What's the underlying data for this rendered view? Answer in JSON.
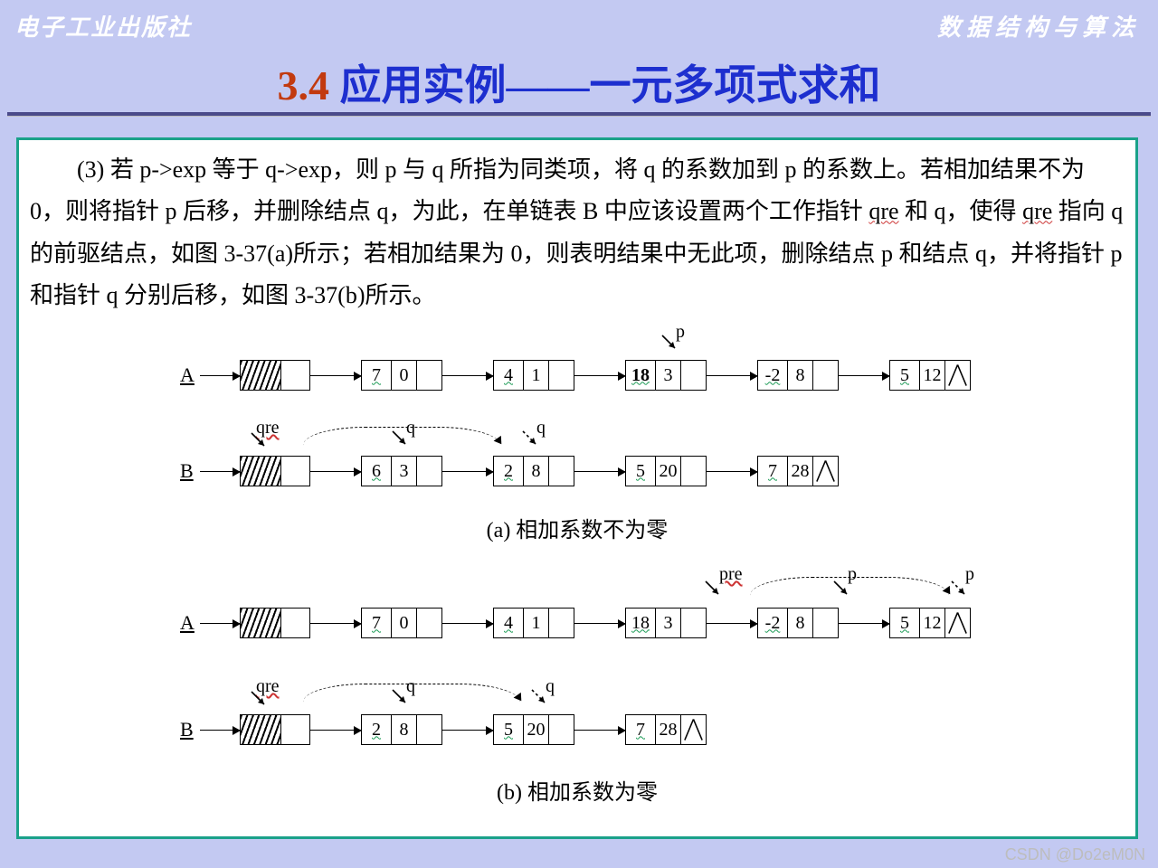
{
  "header": {
    "left": "电子工业出版社",
    "right": "数据结构与算法"
  },
  "title": {
    "number": "3.4",
    "text": " 应用实例——一元多项式求和"
  },
  "paragraph": {
    "prefix": "(3) 若 p->exp 等于 q->exp，则 p 与 q 所指为同类项，将 q 的系数加到 p 的系数上。若相加结果不为 0，则将指针 p 后移，并删除结点 q，为此，在单链表 B 中应该设置两个工作指针 ",
    "w1": "qre",
    "mid1": " 和 q，使得 ",
    "w2": "qre",
    "mid2": " 指向 q 的前驱结点，如图 3-37(a)所示；若相加结果为 0，则表明结果中无此项，删除结点 p 和结点 q，并将指针 p 和指针 q 分别后移，如图 3-37(b)所示。"
  },
  "colors": {
    "page_bg": "#c3c9f2",
    "panel_border": "#1aa189",
    "title_color": "#1d2fcf",
    "title_num_color": "#c23a0f",
    "wave_color": "#cc3333"
  },
  "labels": {
    "A": "A",
    "B": "B",
    "p": "p",
    "q": "q",
    "qre": "qre",
    "pre": "pre"
  },
  "captionA": "(a) 相加系数不为零",
  "captionB": "(b) 相加系数为零",
  "diagramA": {
    "listA": [
      {
        "coef": "7",
        "exp": "0"
      },
      {
        "coef": "4",
        "exp": "1"
      },
      {
        "coef": "18",
        "exp": "3",
        "bold": true
      },
      {
        "coef": "-2",
        "exp": "8"
      },
      {
        "coef": "5",
        "exp": "12",
        "nil": true
      }
    ],
    "listB": [
      {
        "coef": "6",
        "exp": "3"
      },
      {
        "coef": "2",
        "exp": "8"
      },
      {
        "coef": "5",
        "exp": "20"
      },
      {
        "coef": "7",
        "exp": "28",
        "nil": true
      }
    ],
    "pointers": {
      "p_on_A_index": 2,
      "qre_on_B": "head",
      "q_on_B_original": 0,
      "q_on_B_new": 1
    }
  },
  "diagramB": {
    "listA": [
      {
        "coef": "7",
        "exp": "0"
      },
      {
        "coef": "4",
        "exp": "1"
      },
      {
        "coef": "18",
        "exp": "3"
      },
      {
        "coef": "-2",
        "exp": "8"
      },
      {
        "coef": "5",
        "exp": "12",
        "nil": true
      }
    ],
    "listB": [
      {
        "coef": "2",
        "exp": "8"
      },
      {
        "coef": "5",
        "exp": "20"
      },
      {
        "coef": "7",
        "exp": "28",
        "nil": true
      }
    ],
    "pointers": {
      "pre_on_A_index": 2,
      "p_on_A_original": 3,
      "p_on_A_new": 4,
      "qre_on_B": "head",
      "q_on_B_original": 0,
      "q_on_B_new": 1
    }
  },
  "watermark": "CSDN @Do2eM0N",
  "fontsizes": {
    "title": 46,
    "body": 26,
    "caption": 24,
    "nodetext": 20
  }
}
